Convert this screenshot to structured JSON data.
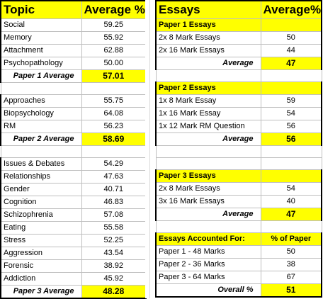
{
  "left": {
    "header": {
      "col1": "Topic",
      "col2": "Average %"
    },
    "group1": [
      {
        "topic": "Social",
        "avg": "59.25"
      },
      {
        "topic": "Memory",
        "avg": "55.92"
      },
      {
        "topic": "Attachment",
        "avg": "62.88"
      },
      {
        "topic": "Psychopathology",
        "avg": "50.00"
      }
    ],
    "group1_avg": {
      "label": "Paper 1 Average",
      "value": "57.01"
    },
    "group2": [
      {
        "topic": "Approaches",
        "avg": "55.75"
      },
      {
        "topic": "Biopsychology",
        "avg": "64.08"
      },
      {
        "topic": "RM",
        "avg": "56.23"
      }
    ],
    "group2_avg": {
      "label": "Paper 2 Average",
      "value": "58.69"
    },
    "group3": [
      {
        "topic": "Issues & Debates",
        "avg": "54.29"
      },
      {
        "topic": "Relationships",
        "avg": "47.63"
      },
      {
        "topic": "Gender",
        "avg": "40.71"
      },
      {
        "topic": "Cognition",
        "avg": "46.83"
      },
      {
        "topic": "Schizophrenia",
        "avg": "57.08"
      },
      {
        "topic": "Eating",
        "avg": "55.58"
      },
      {
        "topic": "Stress",
        "avg": "52.25"
      },
      {
        "topic": "Aggression",
        "avg": "43.54"
      },
      {
        "topic": "Forensic",
        "avg": "38.92"
      },
      {
        "topic": "Addiction",
        "avg": "45.92"
      }
    ],
    "group3_avg": {
      "label": "Paper 3 Average",
      "value": "48.28"
    }
  },
  "right": {
    "header": {
      "col1": "Essays",
      "col2": "Average%"
    },
    "p1": {
      "title": "Paper 1 Essays",
      "rows": [
        {
          "label": "2x 8 Mark Essays",
          "value": "50"
        },
        {
          "label": "2x 16 Mark Essays",
          "value": "44"
        }
      ],
      "avg_label": "Average",
      "avg_value": "47"
    },
    "p2": {
      "title": "Paper 2 Essays",
      "rows": [
        {
          "label": "1x 8 Mark Essay",
          "value": "59"
        },
        {
          "label": "1x 16 Mark Essay",
          "value": "54"
        },
        {
          "label": "1x 12 Mark RM Question",
          "value": "56"
        }
      ],
      "avg_label": "Average",
      "avg_value": "56"
    },
    "p3": {
      "title": "Paper 3 Essays",
      "rows": [
        {
          "label": "2x 8 Mark Essays",
          "value": "54"
        },
        {
          "label": "3x 16 Mark Essays",
          "value": "40"
        }
      ],
      "avg_label": "Average",
      "avg_value": "47"
    },
    "accounted": {
      "title": "Essays Accounted For:",
      "col2": "% of Paper",
      "rows": [
        {
          "label": "Paper 1 - 48 Marks",
          "value": "50"
        },
        {
          "label": "Paper 2 - 36 Marks",
          "value": "38"
        },
        {
          "label": "Paper 3 - 64 Marks",
          "value": "67"
        }
      ],
      "overall_label": "Overall %",
      "overall_value": "51"
    }
  }
}
